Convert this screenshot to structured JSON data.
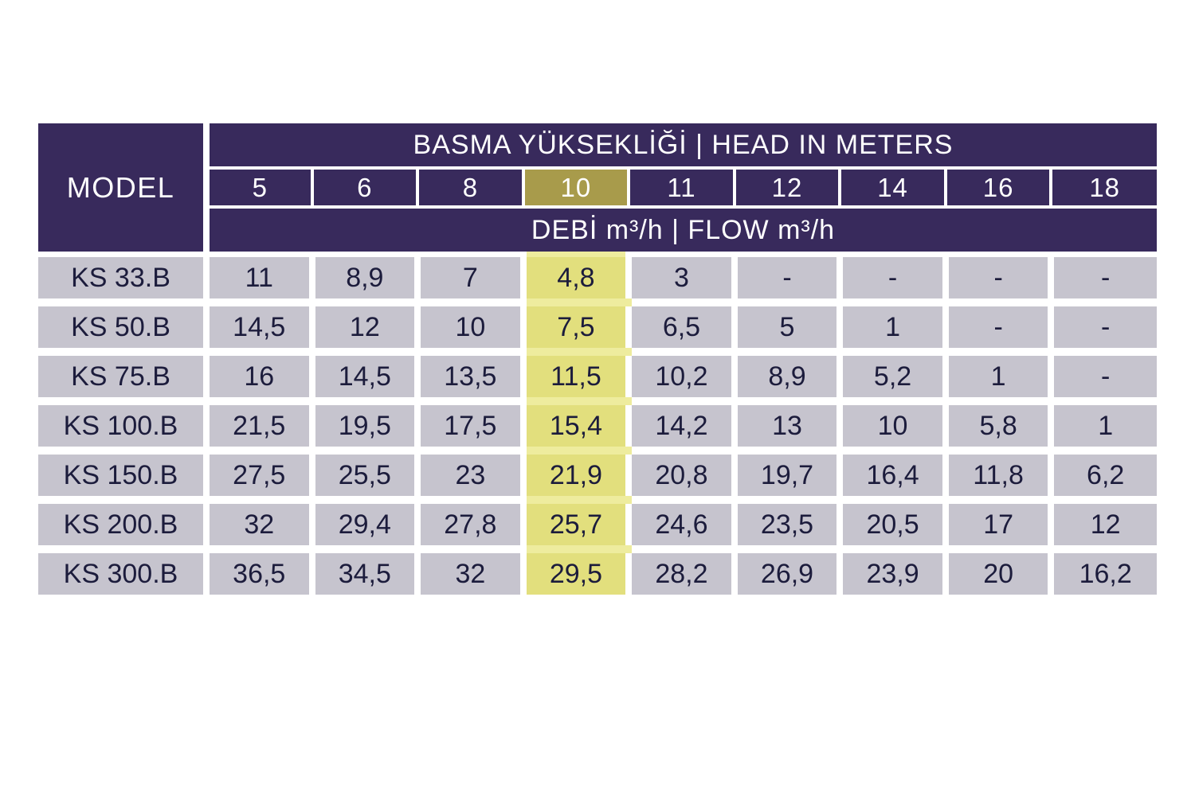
{
  "table": {
    "model_header": "MODEL",
    "head_title": "BASMA YÜKSEKLİĞİ | HEAD IN METERS",
    "flow_title": "DEBİ m³/h | FLOW m³/h",
    "head_columns": [
      "5",
      "6",
      "8",
      "10",
      "11",
      "12",
      "14",
      "16",
      "18"
    ],
    "highlighted_column": "10",
    "highlighted_column_index": 3,
    "rows": [
      {
        "model": "KS 33.B",
        "values": [
          "11",
          "8,9",
          "7",
          "4,8",
          "3",
          "-",
          "-",
          "-",
          "-"
        ]
      },
      {
        "model": "KS 50.B",
        "values": [
          "14,5",
          "12",
          "10",
          "7,5",
          "6,5",
          "5",
          "1",
          "-",
          "-"
        ]
      },
      {
        "model": "KS 75.B",
        "values": [
          "16",
          "14,5",
          "13,5",
          "11,5",
          "10,2",
          "8,9",
          "5,2",
          "1",
          "-"
        ]
      },
      {
        "model": "KS 100.B",
        "values": [
          "21,5",
          "19,5",
          "17,5",
          "15,4",
          "14,2",
          "13",
          "10",
          "5,8",
          "1"
        ]
      },
      {
        "model": "KS 150.B",
        "values": [
          "27,5",
          "25,5",
          "23",
          "21,9",
          "20,8",
          "19,7",
          "16,4",
          "11,8",
          "6,2"
        ]
      },
      {
        "model": "KS 200.B",
        "values": [
          "32",
          "29,4",
          "27,8",
          "25,7",
          "24,6",
          "23,5",
          "20,5",
          "17",
          "12"
        ]
      },
      {
        "model": "KS 300.B",
        "values": [
          "36,5",
          "34,5",
          "32",
          "29,5",
          "28,2",
          "26,9",
          "23,9",
          "20",
          "16,2"
        ]
      }
    ],
    "colors": {
      "header_bg": "#382A5C",
      "header_text": "#FFFFFF",
      "cell_bg": "#C6C4CE",
      "cell_text": "#1C1C3C",
      "highlight_header_bg": "#A89B4B",
      "highlight_cell_bg": "#E2DF7D",
      "highlight_gap": "#EEEC9E",
      "gap": "#FFFFFF"
    }
  },
  "chart_data": {
    "type": "table",
    "title": "BASMA YÜKSEKLİĞİ | HEAD IN METERS",
    "subtitle": "DEBİ m³/h | FLOW m³/h",
    "categories": [
      "5",
      "6",
      "8",
      "10",
      "11",
      "12",
      "14",
      "16",
      "18"
    ],
    "series": [
      {
        "name": "KS 33.B",
        "values": [
          11,
          8.9,
          7,
          4.8,
          3,
          null,
          null,
          null,
          null
        ]
      },
      {
        "name": "KS 50.B",
        "values": [
          14.5,
          12,
          10,
          7.5,
          6.5,
          5,
          1,
          null,
          null
        ]
      },
      {
        "name": "KS 75.B",
        "values": [
          16,
          14.5,
          13.5,
          11.5,
          10.2,
          8.9,
          5.2,
          1,
          null
        ]
      },
      {
        "name": "KS 100.B",
        "values": [
          21.5,
          19.5,
          17.5,
          15.4,
          14.2,
          13,
          10,
          5.8,
          1
        ]
      },
      {
        "name": "KS 150.B",
        "values": [
          27.5,
          25.5,
          23,
          21.9,
          20.8,
          19.7,
          16.4,
          11.8,
          6.2
        ]
      },
      {
        "name": "KS 200.B",
        "values": [
          32,
          29.4,
          27.8,
          25.7,
          24.6,
          23.5,
          20.5,
          17,
          12
        ]
      },
      {
        "name": "KS 300.B",
        "values": [
          36.5,
          34.5,
          32,
          29.5,
          28.2,
          26.9,
          23.9,
          20,
          16.2
        ]
      }
    ],
    "xlabel": "Head in meters",
    "ylabel": "Flow m³/h",
    "highlighted_category": "10"
  }
}
